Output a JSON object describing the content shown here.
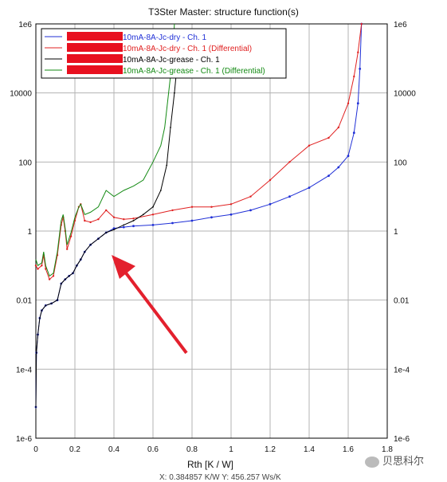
{
  "window_title": "T3Ster Master: structure function(s)",
  "watermark_text": "贝思科尔",
  "bottom_cutoff_text": "X: 0.384857 K/W   Y: 456.257 Ws/K",
  "annotation": {
    "type": "arrow",
    "color": "#e3202d"
  },
  "chart_data": {
    "type": "line",
    "title": "T3Ster Master: structure function(s)",
    "xlabel": "Rth  [K / W]",
    "ylabel": "",
    "xlim": [
      0,
      1.8
    ],
    "ylim": [
      1e-06,
      1000000
    ],
    "yscale": "log",
    "grid": true,
    "legend_position": "top-left",
    "x_ticks": [
      "0",
      "0.2",
      "0.4",
      "0.6",
      "0.8",
      "1",
      "1.2",
      "1.4",
      "1.6",
      "1.8"
    ],
    "y_ticks": [
      "1e-6",
      "1e-4",
      "0.01",
      "1",
      "100",
      "10000",
      "1e6"
    ],
    "series": [
      {
        "name": "10mA-8A-Jc-dry - Ch. 1",
        "color": "#1f2fd6",
        "points": [
          [
            0,
            8e-06
          ],
          [
            0.003,
            0.0003
          ],
          [
            0.01,
            0.001
          ],
          [
            0.02,
            0.003
          ],
          [
            0.03,
            0.005
          ],
          [
            0.05,
            0.007
          ],
          [
            0.08,
            0.008
          ],
          [
            0.11,
            0.01
          ],
          [
            0.13,
            0.03
          ],
          [
            0.15,
            0.04
          ],
          [
            0.17,
            0.05
          ],
          [
            0.19,
            0.06
          ],
          [
            0.21,
            0.1
          ],
          [
            0.23,
            0.15
          ],
          [
            0.25,
            0.25
          ],
          [
            0.28,
            0.4
          ],
          [
            0.32,
            0.6
          ],
          [
            0.36,
            0.9
          ],
          [
            0.4,
            1.2
          ],
          [
            0.45,
            1.3
          ],
          [
            0.5,
            1.4
          ],
          [
            0.6,
            1.5
          ],
          [
            0.7,
            1.7
          ],
          [
            0.8,
            2.0
          ],
          [
            0.9,
            2.5
          ],
          [
            1.0,
            3.0
          ],
          [
            1.1,
            4.0
          ],
          [
            1.2,
            6.0
          ],
          [
            1.3,
            10
          ],
          [
            1.4,
            18
          ],
          [
            1.5,
            40
          ],
          [
            1.55,
            70
          ],
          [
            1.6,
            150
          ],
          [
            1.63,
            700
          ],
          [
            1.65,
            5000
          ],
          [
            1.66,
            50000
          ],
          [
            1.668,
            1000000
          ]
        ]
      },
      {
        "name": "10mA-8A-Jc-dry - Ch. 1 (Differential)",
        "color": "#e02020",
        "points": [
          [
            0,
            0.1
          ],
          [
            0.01,
            0.08
          ],
          [
            0.03,
            0.1
          ],
          [
            0.04,
            0.2
          ],
          [
            0.05,
            0.08
          ],
          [
            0.07,
            0.04
          ],
          [
            0.09,
            0.05
          ],
          [
            0.11,
            0.2
          ],
          [
            0.13,
            1.5
          ],
          [
            0.14,
            2.5
          ],
          [
            0.15,
            1.0
          ],
          [
            0.16,
            0.3
          ],
          [
            0.18,
            0.7
          ],
          [
            0.2,
            2.0
          ],
          [
            0.22,
            5.0
          ],
          [
            0.23,
            6.0
          ],
          [
            0.25,
            2.0
          ],
          [
            0.28,
            1.8
          ],
          [
            0.32,
            2.2
          ],
          [
            0.36,
            4.0
          ],
          [
            0.4,
            2.5
          ],
          [
            0.45,
            2.2
          ],
          [
            0.5,
            2.3
          ],
          [
            0.6,
            3.0
          ],
          [
            0.7,
            4.0
          ],
          [
            0.8,
            5.0
          ],
          [
            0.9,
            5.0
          ],
          [
            1.0,
            6.0
          ],
          [
            1.1,
            10
          ],
          [
            1.2,
            30
          ],
          [
            1.3,
            100
          ],
          [
            1.4,
            300
          ],
          [
            1.5,
            500
          ],
          [
            1.55,
            1000
          ],
          [
            1.6,
            5000
          ],
          [
            1.63,
            30000
          ],
          [
            1.65,
            150000
          ],
          [
            1.668,
            1000000
          ]
        ]
      },
      {
        "name": "10mA-8A-Jc-grease - Ch. 1",
        "color": "#000000",
        "points": [
          [
            0,
            8e-06
          ],
          [
            0.003,
            0.0003
          ],
          [
            0.01,
            0.001
          ],
          [
            0.02,
            0.003
          ],
          [
            0.03,
            0.005
          ],
          [
            0.05,
            0.007
          ],
          [
            0.08,
            0.008
          ],
          [
            0.11,
            0.01
          ],
          [
            0.13,
            0.03
          ],
          [
            0.15,
            0.04
          ],
          [
            0.17,
            0.05
          ],
          [
            0.19,
            0.06
          ],
          [
            0.21,
            0.1
          ],
          [
            0.23,
            0.15
          ],
          [
            0.25,
            0.25
          ],
          [
            0.28,
            0.4
          ],
          [
            0.32,
            0.6
          ],
          [
            0.36,
            0.9
          ],
          [
            0.4,
            1.1
          ],
          [
            0.45,
            1.5
          ],
          [
            0.5,
            2.0
          ],
          [
            0.55,
            3.0
          ],
          [
            0.6,
            5.0
          ],
          [
            0.64,
            15
          ],
          [
            0.67,
            80
          ],
          [
            0.69,
            1000
          ],
          [
            0.71,
            10000
          ],
          [
            0.72,
            40000
          ]
        ]
      },
      {
        "name": "10mA-8A-Jc-grease - Ch. 1 (Differential)",
        "color": "#138a13",
        "points": [
          [
            0,
            0.15
          ],
          [
            0.01,
            0.1
          ],
          [
            0.03,
            0.12
          ],
          [
            0.04,
            0.25
          ],
          [
            0.05,
            0.1
          ],
          [
            0.07,
            0.05
          ],
          [
            0.09,
            0.06
          ],
          [
            0.11,
            0.25
          ],
          [
            0.13,
            2.0
          ],
          [
            0.14,
            3.0
          ],
          [
            0.15,
            1.2
          ],
          [
            0.16,
            0.4
          ],
          [
            0.18,
            0.9
          ],
          [
            0.2,
            2.5
          ],
          [
            0.22,
            5.0
          ],
          [
            0.23,
            6.0
          ],
          [
            0.25,
            3.0
          ],
          [
            0.28,
            3.5
          ],
          [
            0.32,
            5.0
          ],
          [
            0.36,
            15
          ],
          [
            0.4,
            10
          ],
          [
            0.45,
            15
          ],
          [
            0.5,
            20
          ],
          [
            0.55,
            30
          ],
          [
            0.6,
            100
          ],
          [
            0.64,
            300
          ],
          [
            0.66,
            1000
          ],
          [
            0.68,
            10000
          ],
          [
            0.7,
            100000
          ],
          [
            0.71,
            1000000
          ]
        ]
      }
    ]
  }
}
